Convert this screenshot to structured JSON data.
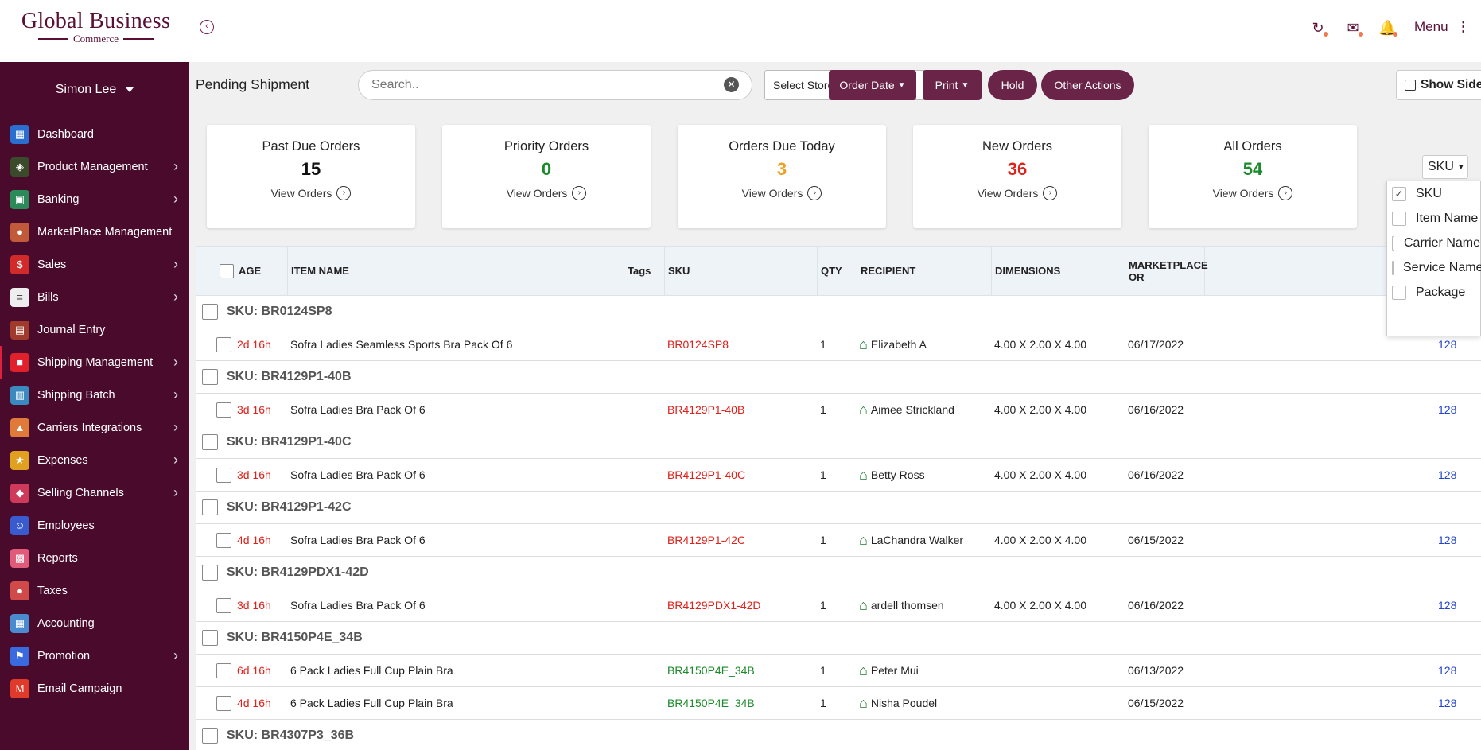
{
  "brand": {
    "name": "Global Business",
    "sub": "Commerce"
  },
  "header": {
    "menu_label": "Menu",
    "icons": [
      "sync-icon",
      "mail-icon",
      "bell-icon"
    ]
  },
  "sidebar": {
    "user": "Simon Lee",
    "items": [
      {
        "label": "Dashboard",
        "icon": "dashboard-icon",
        "color": "#2a6fd0",
        "has_sub": false
      },
      {
        "label": "Product Management",
        "icon": "product-icon",
        "color": "#3a4a2a",
        "has_sub": true
      },
      {
        "label": "Banking",
        "icon": "bank-icon",
        "color": "#2a8a5a",
        "has_sub": true
      },
      {
        "label": "MarketPlace Management",
        "icon": "marketplace-icon",
        "color": "#c05a3a",
        "has_sub": false
      },
      {
        "label": "Sales",
        "icon": "sales-icon",
        "color": "#d02a2a",
        "has_sub": true
      },
      {
        "label": "Bills",
        "icon": "bills-icon",
        "color": "#eeeeee",
        "has_sub": true
      },
      {
        "label": "Journal Entry",
        "icon": "journal-icon",
        "color": "#a03a2a",
        "has_sub": false
      },
      {
        "label": "Shipping Management",
        "icon": "cart-icon",
        "color": "#e0202a",
        "has_sub": true,
        "active": true
      },
      {
        "label": "Shipping Batch",
        "icon": "batch-icon",
        "color": "#3a8ac0",
        "has_sub": true
      },
      {
        "label": "Carriers Integrations",
        "icon": "carrier-icon",
        "color": "#e07a3a",
        "has_sub": true
      },
      {
        "label": "Expenses",
        "icon": "expenses-icon",
        "color": "#e0a020",
        "has_sub": true
      },
      {
        "label": "Selling Channels",
        "icon": "channel-icon",
        "color": "#d03a5a",
        "has_sub": true
      },
      {
        "label": "Employees",
        "icon": "employees-icon",
        "color": "#3a5ad0",
        "has_sub": false
      },
      {
        "label": "Reports",
        "icon": "reports-icon",
        "color": "#e05a7a",
        "has_sub": false
      },
      {
        "label": "Taxes",
        "icon": "taxes-icon",
        "color": "#d04a4a",
        "has_sub": false
      },
      {
        "label": "Accounting",
        "icon": "accounting-icon",
        "color": "#4a8ad0",
        "has_sub": false
      },
      {
        "label": "Promotion",
        "icon": "promotion-icon",
        "color": "#3a6ae0",
        "has_sub": true
      },
      {
        "label": "Email Campaign",
        "icon": "gmail-icon",
        "color": "#e03a2a",
        "has_sub": false
      }
    ]
  },
  "toolbar": {
    "title": "Pending Shipment",
    "search_placeholder": "Search..",
    "store_select": "Select Store",
    "order_date": "Order Date",
    "print": "Print",
    "hold": "Hold",
    "other_actions": "Other Actions",
    "show_side": "Show Side"
  },
  "cards": [
    {
      "title": "Past Due Orders",
      "count": "15",
      "color": "#111111",
      "link": "View Orders"
    },
    {
      "title": "Priority Orders",
      "count": "0",
      "color": "#1a8a2a",
      "link": "View Orders"
    },
    {
      "title": "Orders Due Today",
      "count": "3",
      "color": "#f0a020",
      "link": "View Orders"
    },
    {
      "title": "New Orders",
      "count": "36",
      "color": "#e0201a",
      "link": "View Orders"
    },
    {
      "title": "All Orders",
      "count": "54",
      "color": "#1a8a2a",
      "link": "View Orders"
    }
  ],
  "group_by": {
    "selected": "SKU",
    "options": [
      {
        "label": "SKU",
        "checked": true
      },
      {
        "label": "Item Name",
        "checked": false
      },
      {
        "label": "Carrier Name",
        "checked": false
      },
      {
        "label": "Service Name",
        "checked": false
      },
      {
        "label": "Package",
        "checked": false
      }
    ]
  },
  "table": {
    "headers": [
      "AGE",
      "ITEM NAME",
      "Tags",
      "SKU",
      "QTY",
      "RECIPIENT",
      "DIMENSIONS",
      "MARKETPLACE OR"
    ],
    "rows": [
      {
        "type": "group",
        "label": "SKU: BR0124SP8"
      },
      {
        "type": "item",
        "age": "2d 16h",
        "item": "Sofra Ladies Seamless Sports Bra Pack Of 6",
        "sku": "BR0124SP8",
        "sku_color": "red",
        "qty": "1",
        "recipient": "Elizabeth A",
        "dims": "4.00 X 2.00 X 4.00",
        "date": "06/17/2022",
        "order": "128"
      },
      {
        "type": "group",
        "label": "SKU: BR4129P1-40B"
      },
      {
        "type": "item",
        "age": "3d 16h",
        "item": "Sofra Ladies Bra Pack Of 6",
        "sku": "BR4129P1-40B",
        "sku_color": "red",
        "qty": "1",
        "recipient": "Aimee Strickland",
        "dims": "4.00 X 2.00 X 4.00",
        "date": "06/16/2022",
        "order": "128"
      },
      {
        "type": "group",
        "label": "SKU: BR4129P1-40C"
      },
      {
        "type": "item",
        "age": "3d 16h",
        "item": "Sofra Ladies Bra Pack Of 6",
        "sku": "BR4129P1-40C",
        "sku_color": "red",
        "qty": "1",
        "recipient": "Betty Ross",
        "dims": "4.00 X 2.00 X 4.00",
        "date": "06/16/2022",
        "order": "128"
      },
      {
        "type": "group",
        "label": "SKU: BR4129P1-42C"
      },
      {
        "type": "item",
        "age": "4d 16h",
        "item": "Sofra Ladies Bra Pack Of 6",
        "sku": "BR4129P1-42C",
        "sku_color": "red",
        "qty": "1",
        "recipient": "LaChandra Walker",
        "dims": "4.00 X 2.00 X 4.00",
        "date": "06/15/2022",
        "order": "128"
      },
      {
        "type": "group",
        "label": "SKU: BR4129PDX1-42D"
      },
      {
        "type": "item",
        "age": "3d 16h",
        "item": "Sofra Ladies Bra Pack Of 6",
        "sku": "BR4129PDX1-42D",
        "sku_color": "red",
        "qty": "1",
        "recipient": "ardell thomsen",
        "dims": "4.00 X 2.00 X 4.00",
        "date": "06/16/2022",
        "order": "128"
      },
      {
        "type": "group",
        "label": "SKU: BR4150P4E_34B"
      },
      {
        "type": "item",
        "age": "6d 16h",
        "item": "6 Pack Ladies Full Cup Plain Bra",
        "sku": "BR4150P4E_34B",
        "sku_color": "green",
        "qty": "1",
        "recipient": "Peter Mui",
        "dims": "",
        "date": "06/13/2022",
        "order": "128"
      },
      {
        "type": "item",
        "age": "4d 16h",
        "item": "6 Pack Ladies Full Cup Plain Bra",
        "sku": "BR4150P4E_34B",
        "sku_color": "green",
        "qty": "1",
        "recipient": "Nisha Poudel",
        "dims": "",
        "date": "06/15/2022",
        "order": "128"
      },
      {
        "type": "group",
        "label": "SKU: BR4307P3_36B"
      }
    ]
  }
}
